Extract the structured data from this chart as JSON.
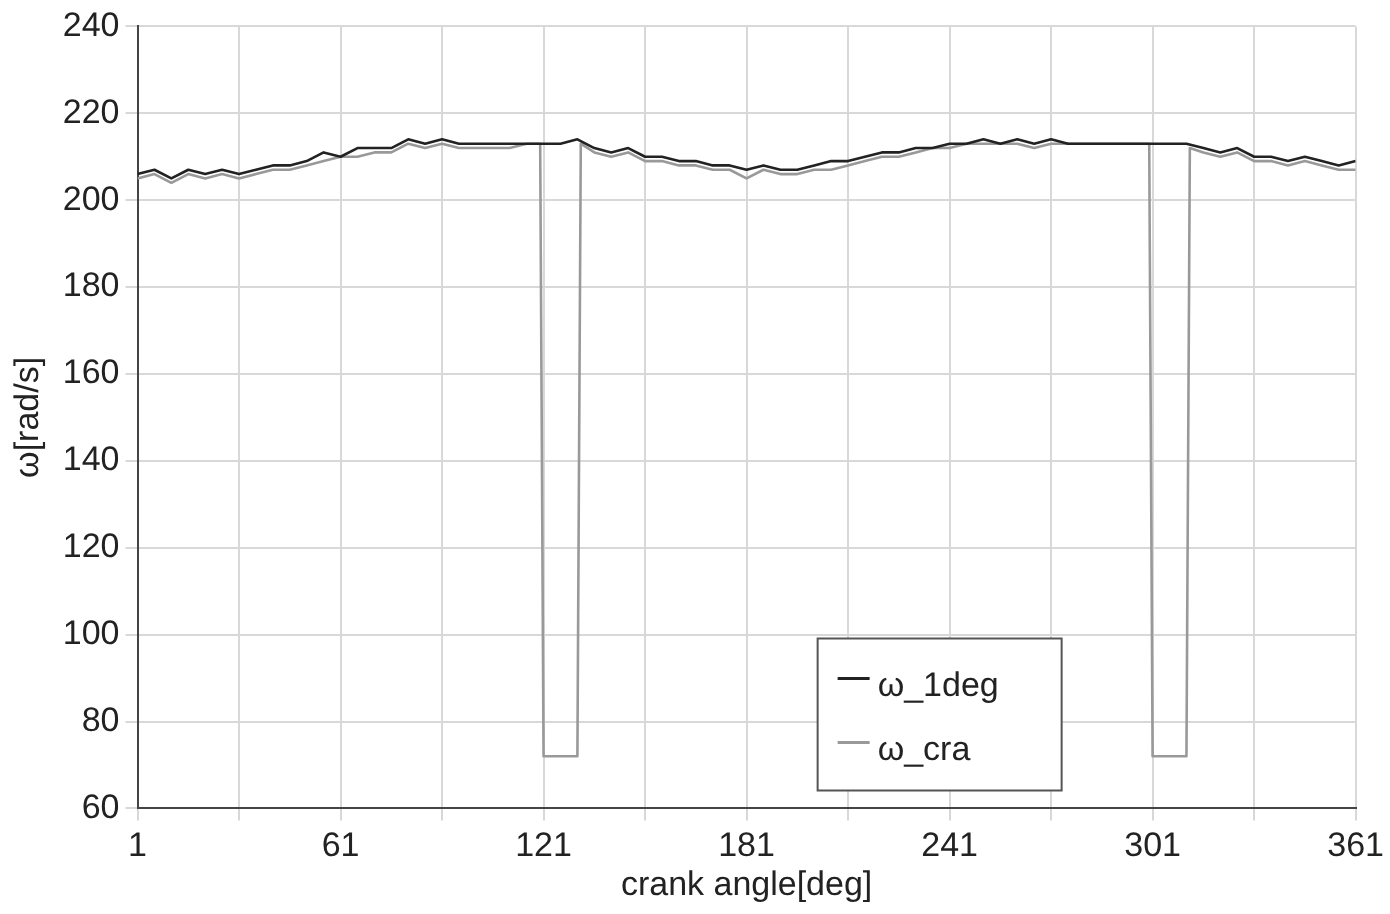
{
  "chart_data": {
    "type": "line",
    "xlabel": "crank angle[deg]",
    "ylabel": "ω[rad/s]",
    "xlim": [
      1,
      361
    ],
    "xticks": [
      1,
      {
        "value": 31,
        "label": null
      },
      61,
      {
        "value": 91,
        "label": null
      },
      121,
      {
        "value": 151,
        "label": null
      },
      181,
      {
        "value": 211,
        "label": null
      },
      241,
      {
        "value": 271,
        "label": null
      },
      301,
      {
        "value": 331,
        "label": null
      },
      361
    ],
    "ylim": [
      60,
      240
    ],
    "yticks": [
      60,
      80,
      100,
      120,
      140,
      160,
      180,
      200,
      220,
      240
    ],
    "grid": true,
    "legend": "bottom right",
    "marker": "none",
    "line_style": "solid",
    "series": [
      {
        "name": "ω_1deg",
        "color": "#222222",
        "x": [
          1,
          6,
          11,
          16,
          21,
          26,
          31,
          36,
          41,
          46,
          51,
          56,
          61,
          66,
          71,
          76,
          81,
          86,
          91,
          96,
          101,
          106,
          111,
          116,
          121,
          126,
          131,
          136,
          141,
          146,
          151,
          156,
          161,
          166,
          171,
          176,
          181,
          186,
          191,
          196,
          201,
          206,
          211,
          216,
          221,
          226,
          231,
          236,
          241,
          246,
          251,
          256,
          261,
          266,
          271,
          276,
          281,
          286,
          291,
          296,
          301,
          306,
          311,
          316,
          321,
          326,
          331,
          336,
          341,
          346,
          351,
          356,
          361
        ],
        "values": [
          206,
          207,
          205,
          207,
          206,
          207,
          206,
          207,
          208,
          208,
          209,
          211,
          210,
          212,
          212,
          212,
          214,
          213,
          214,
          213,
          213,
          213,
          213,
          213,
          213,
          213,
          214,
          212,
          211,
          212,
          210,
          210,
          209,
          209,
          208,
          208,
          207,
          208,
          207,
          207,
          208,
          209,
          209,
          210,
          211,
          211,
          212,
          212,
          213,
          213,
          214,
          213,
          214,
          213,
          214,
          213,
          213,
          213,
          213,
          213,
          213,
          213,
          213,
          212,
          211,
          212,
          210,
          210,
          209,
          210,
          209,
          208,
          209
        ]
      },
      {
        "name": "ω_cra",
        "color": "#999999",
        "x": [
          1,
          6,
          11,
          16,
          21,
          26,
          31,
          36,
          41,
          46,
          51,
          56,
          61,
          66,
          71,
          76,
          81,
          86,
          91,
          96,
          101,
          106,
          111,
          116,
          120,
          121,
          131,
          132,
          136,
          141,
          146,
          151,
          156,
          161,
          166,
          171,
          176,
          181,
          186,
          191,
          196,
          201,
          206,
          211,
          216,
          221,
          226,
          231,
          236,
          241,
          246,
          251,
          256,
          261,
          266,
          271,
          276,
          281,
          286,
          291,
          296,
          300,
          301,
          311,
          312,
          316,
          321,
          326,
          331,
          336,
          341,
          346,
          351,
          356,
          361
        ],
        "values": [
          205,
          206,
          204,
          206,
          205,
          206,
          205,
          206,
          207,
          207,
          208,
          209,
          210,
          210,
          211,
          211,
          213,
          212,
          213,
          212,
          212,
          212,
          212,
          213,
          213,
          72,
          72,
          213,
          211,
          210,
          211,
          209,
          209,
          208,
          208,
          207,
          207,
          205,
          207,
          206,
          206,
          207,
          207,
          208,
          209,
          210,
          210,
          211,
          212,
          212,
          213,
          213,
          213,
          213,
          212,
          213,
          213,
          213,
          213,
          213,
          213,
          213,
          72,
          72,
          212,
          211,
          210,
          211,
          209,
          209,
          208,
          209,
          208,
          207,
          207
        ]
      }
    ]
  }
}
